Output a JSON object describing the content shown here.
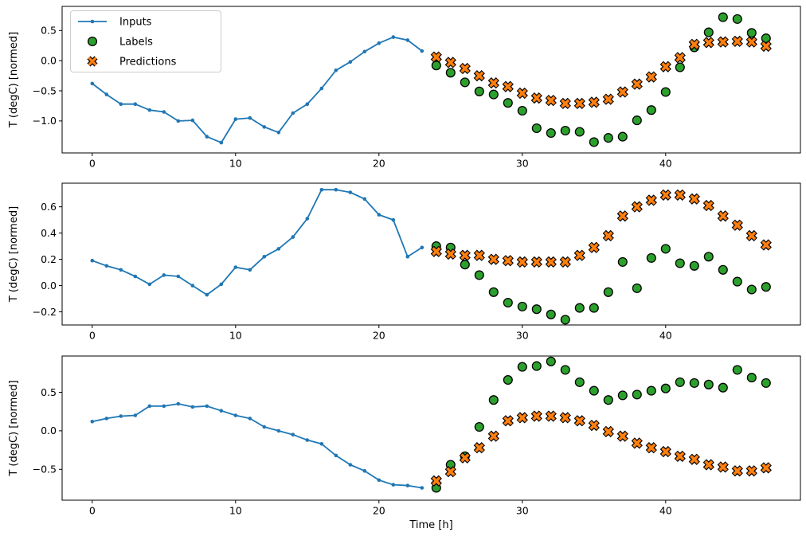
{
  "figure": {
    "background": "#ffffff",
    "colors": {
      "inputs": "#1f77b4",
      "labels": "#2ca02c",
      "predictions": "#ff7f0e",
      "marker_edge": "#000000",
      "spine": "#000000",
      "legend_border": "#cccccc"
    },
    "legend": {
      "position": "upper-left-subplot-1",
      "items": [
        {
          "label": "Inputs",
          "marker": "line-dot",
          "color": "#1f77b4"
        },
        {
          "label": "Labels",
          "marker": "circle",
          "color": "#2ca02c"
        },
        {
          "label": "Predictions",
          "marker": "X",
          "color": "#ff7f0e"
        }
      ]
    }
  },
  "chart_data": [
    {
      "type": "line",
      "title": "",
      "xlabel": "",
      "ylabel": "T (degC) [normed]",
      "xlim": [
        -2.1,
        49.4
      ],
      "ylim": [
        -1.53,
        0.9
      ],
      "xticks": [
        0,
        10,
        20,
        30,
        40
      ],
      "xtick_labels": [
        "0",
        "10",
        "20",
        "30",
        "40"
      ],
      "yticks": [
        0.5,
        0.0,
        -0.5,
        -1.0
      ],
      "ytick_labels": [
        "0.5",
        "0.0",
        "−0.5",
        "−1.0"
      ],
      "grid": false,
      "series": [
        {
          "name": "Inputs",
          "marker": "line-dot",
          "x": [
            0,
            1,
            2,
            3,
            4,
            5,
            6,
            7,
            8,
            9,
            10,
            11,
            12,
            13,
            14,
            15,
            16,
            17,
            18,
            19,
            20,
            21,
            22,
            23
          ],
          "y": [
            -0.38,
            -0.56,
            -0.72,
            -0.72,
            -0.82,
            -0.85,
            -1.0,
            -0.99,
            -1.26,
            -1.36,
            -0.97,
            -0.95,
            -1.1,
            -1.19,
            -0.87,
            -0.72,
            -0.46,
            -0.16,
            -0.02,
            0.15,
            0.29,
            0.39,
            0.34,
            0.16
          ]
        },
        {
          "name": "Labels",
          "marker": "circle",
          "x": [
            24,
            25,
            26,
            27,
            28,
            29,
            30,
            31,
            32,
            33,
            34,
            35,
            36,
            37,
            38,
            39,
            40,
            41,
            42,
            43,
            44,
            45,
            46,
            47
          ],
          "y": [
            -0.08,
            -0.2,
            -0.36,
            -0.51,
            -0.56,
            -0.7,
            -0.83,
            -1.12,
            -1.2,
            -1.16,
            -1.18,
            -1.35,
            -1.28,
            -1.26,
            -0.99,
            -0.82,
            -0.52,
            -0.11,
            0.22,
            0.47,
            0.72,
            0.69,
            0.46,
            0.37
          ]
        },
        {
          "name": "Predictions",
          "marker": "X",
          "x": [
            24,
            25,
            26,
            27,
            28,
            29,
            30,
            31,
            32,
            33,
            34,
            35,
            36,
            37,
            38,
            39,
            40,
            41,
            42,
            43,
            44,
            45,
            46,
            47
          ],
          "y": [
            0.06,
            -0.03,
            -0.13,
            -0.25,
            -0.37,
            -0.43,
            -0.54,
            -0.62,
            -0.66,
            -0.71,
            -0.71,
            -0.69,
            -0.64,
            -0.52,
            -0.39,
            -0.27,
            -0.1,
            0.05,
            0.27,
            0.3,
            0.31,
            0.32,
            0.31,
            0.24
          ]
        }
      ]
    },
    {
      "type": "line",
      "title": "",
      "xlabel": "",
      "ylabel": "T (degC) [normed]",
      "xlim": [
        -2.1,
        49.4
      ],
      "ylim": [
        -0.3,
        0.78
      ],
      "xticks": [
        0,
        10,
        20,
        30,
        40
      ],
      "xtick_labels": [
        "0",
        "10",
        "20",
        "30",
        "40"
      ],
      "yticks": [
        0.6,
        0.4,
        0.2,
        0.0,
        -0.2
      ],
      "ytick_labels": [
        "0.6",
        "0.4",
        "0.2",
        "0.0",
        "−0.2"
      ],
      "grid": false,
      "series": [
        {
          "name": "Inputs",
          "marker": "line-dot",
          "x": [
            0,
            1,
            2,
            3,
            4,
            5,
            6,
            7,
            8,
            9,
            10,
            11,
            12,
            13,
            14,
            15,
            16,
            17,
            18,
            19,
            20,
            21,
            22,
            23
          ],
          "y": [
            0.19,
            0.15,
            0.12,
            0.07,
            0.01,
            0.08,
            0.07,
            0.0,
            -0.07,
            0.01,
            0.14,
            0.12,
            0.22,
            0.28,
            0.37,
            0.51,
            0.73,
            0.73,
            0.71,
            0.66,
            0.54,
            0.5,
            0.22,
            0.29
          ]
        },
        {
          "name": "Labels",
          "marker": "circle",
          "x": [
            24,
            25,
            26,
            27,
            28,
            29,
            30,
            31,
            32,
            33,
            34,
            35,
            36,
            37,
            38,
            39,
            40,
            41,
            42,
            43,
            44,
            45,
            46,
            47
          ],
          "y": [
            0.3,
            0.29,
            0.16,
            0.08,
            -0.05,
            -0.13,
            -0.16,
            -0.18,
            -0.22,
            -0.26,
            -0.17,
            -0.17,
            -0.05,
            0.18,
            -0.02,
            0.21,
            0.28,
            0.17,
            0.15,
            0.22,
            0.12,
            0.03,
            -0.03,
            -0.01
          ]
        },
        {
          "name": "Predictions",
          "marker": "X",
          "x": [
            24,
            25,
            26,
            27,
            28,
            29,
            30,
            31,
            32,
            33,
            34,
            35,
            36,
            37,
            38,
            39,
            40,
            41,
            42,
            43,
            44,
            45,
            46,
            47
          ],
          "y": [
            0.26,
            0.24,
            0.23,
            0.23,
            0.2,
            0.19,
            0.18,
            0.18,
            0.18,
            0.18,
            0.23,
            0.29,
            0.38,
            0.53,
            0.6,
            0.65,
            0.69,
            0.69,
            0.66,
            0.61,
            0.53,
            0.46,
            0.38,
            0.31
          ]
        }
      ]
    },
    {
      "type": "line",
      "title": "",
      "xlabel": "Time [h]",
      "ylabel": "T (degC) [normed]",
      "xlim": [
        -2.1,
        49.4
      ],
      "ylim": [
        -0.9,
        0.97
      ],
      "xticks": [
        0,
        10,
        20,
        30,
        40
      ],
      "xtick_labels": [
        "0",
        "10",
        "20",
        "30",
        "40"
      ],
      "yticks": [
        0.5,
        0.0,
        -0.5
      ],
      "ytick_labels": [
        "0.5",
        "0.0",
        "−0.5"
      ],
      "grid": false,
      "series": [
        {
          "name": "Inputs",
          "marker": "line-dot",
          "x": [
            0,
            1,
            2,
            3,
            4,
            5,
            6,
            7,
            8,
            9,
            10,
            11,
            12,
            13,
            14,
            15,
            16,
            17,
            18,
            19,
            20,
            21,
            22,
            23
          ],
          "y": [
            0.12,
            0.16,
            0.19,
            0.2,
            0.32,
            0.32,
            0.35,
            0.31,
            0.32,
            0.26,
            0.2,
            0.16,
            0.05,
            0.0,
            -0.05,
            -0.12,
            -0.17,
            -0.32,
            -0.44,
            -0.52,
            -0.64,
            -0.7,
            -0.71,
            -0.74
          ]
        },
        {
          "name": "Labels",
          "marker": "circle",
          "x": [
            24,
            25,
            26,
            27,
            28,
            29,
            30,
            31,
            32,
            33,
            34,
            35,
            36,
            37,
            38,
            39,
            40,
            41,
            42,
            43,
            44,
            45,
            46,
            47
          ],
          "y": [
            -0.74,
            -0.44,
            -0.33,
            0.05,
            0.4,
            0.66,
            0.83,
            0.84,
            0.9,
            0.79,
            0.63,
            0.52,
            0.4,
            0.46,
            0.47,
            0.52,
            0.55,
            0.63,
            0.62,
            0.6,
            0.56,
            0.79,
            0.69,
            0.62
          ]
        },
        {
          "name": "Predictions",
          "marker": "X",
          "x": [
            24,
            25,
            26,
            27,
            28,
            29,
            30,
            31,
            32,
            33,
            34,
            35,
            36,
            37,
            38,
            39,
            40,
            41,
            42,
            43,
            44,
            45,
            46,
            47
          ],
          "y": [
            -0.65,
            -0.53,
            -0.35,
            -0.22,
            -0.07,
            0.13,
            0.17,
            0.19,
            0.19,
            0.17,
            0.13,
            0.07,
            -0.01,
            -0.07,
            -0.16,
            -0.22,
            -0.27,
            -0.33,
            -0.37,
            -0.44,
            -0.47,
            -0.52,
            -0.52,
            -0.48
          ]
        }
      ]
    }
  ]
}
